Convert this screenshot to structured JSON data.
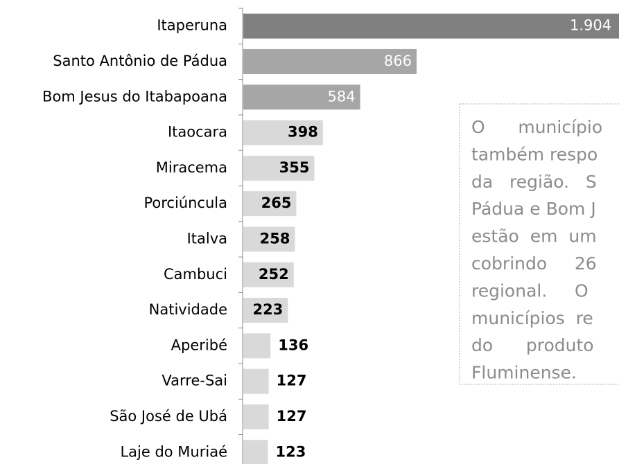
{
  "chart_data": {
    "type": "bar",
    "orientation": "horizontal",
    "categories": [
      "Itaperuna",
      "Santo Antônio de Pádua",
      "Bom Jesus do Itabapoana",
      "Itaocara",
      "Miracema",
      "Porciúncula",
      "Italva",
      "Cambuci",
      "Natividade",
      "Aperibé",
      "Varre-Sai",
      "São José de Ubá",
      "Laje do Muriaé"
    ],
    "values": [
      1904,
      866,
      584,
      398,
      355,
      265,
      258,
      252,
      223,
      136,
      127,
      127,
      123
    ],
    "value_labels": [
      "1.904",
      "866",
      "584",
      "398",
      "355",
      "265",
      "258",
      "252",
      "223",
      "136",
      "127",
      "127",
      "123"
    ],
    "colors": [
      "#808080",
      "#a6a6a6",
      "#a6a6a6",
      "#d9d9d9",
      "#d9d9d9",
      "#d9d9d9",
      "#d9d9d9",
      "#d9d9d9",
      "#d9d9d9",
      "#d9d9d9",
      "#d9d9d9",
      "#d9d9d9",
      "#d9d9d9"
    ],
    "annotation_lines": [
      "O      município",
      "também respo",
      "da   região.   S",
      "Pádua e Bom J",
      "estão  em  um",
      "cobrindo     26",
      "regional.     O",
      "municípios  re",
      "do      produto",
      "Fluminense."
    ]
  }
}
